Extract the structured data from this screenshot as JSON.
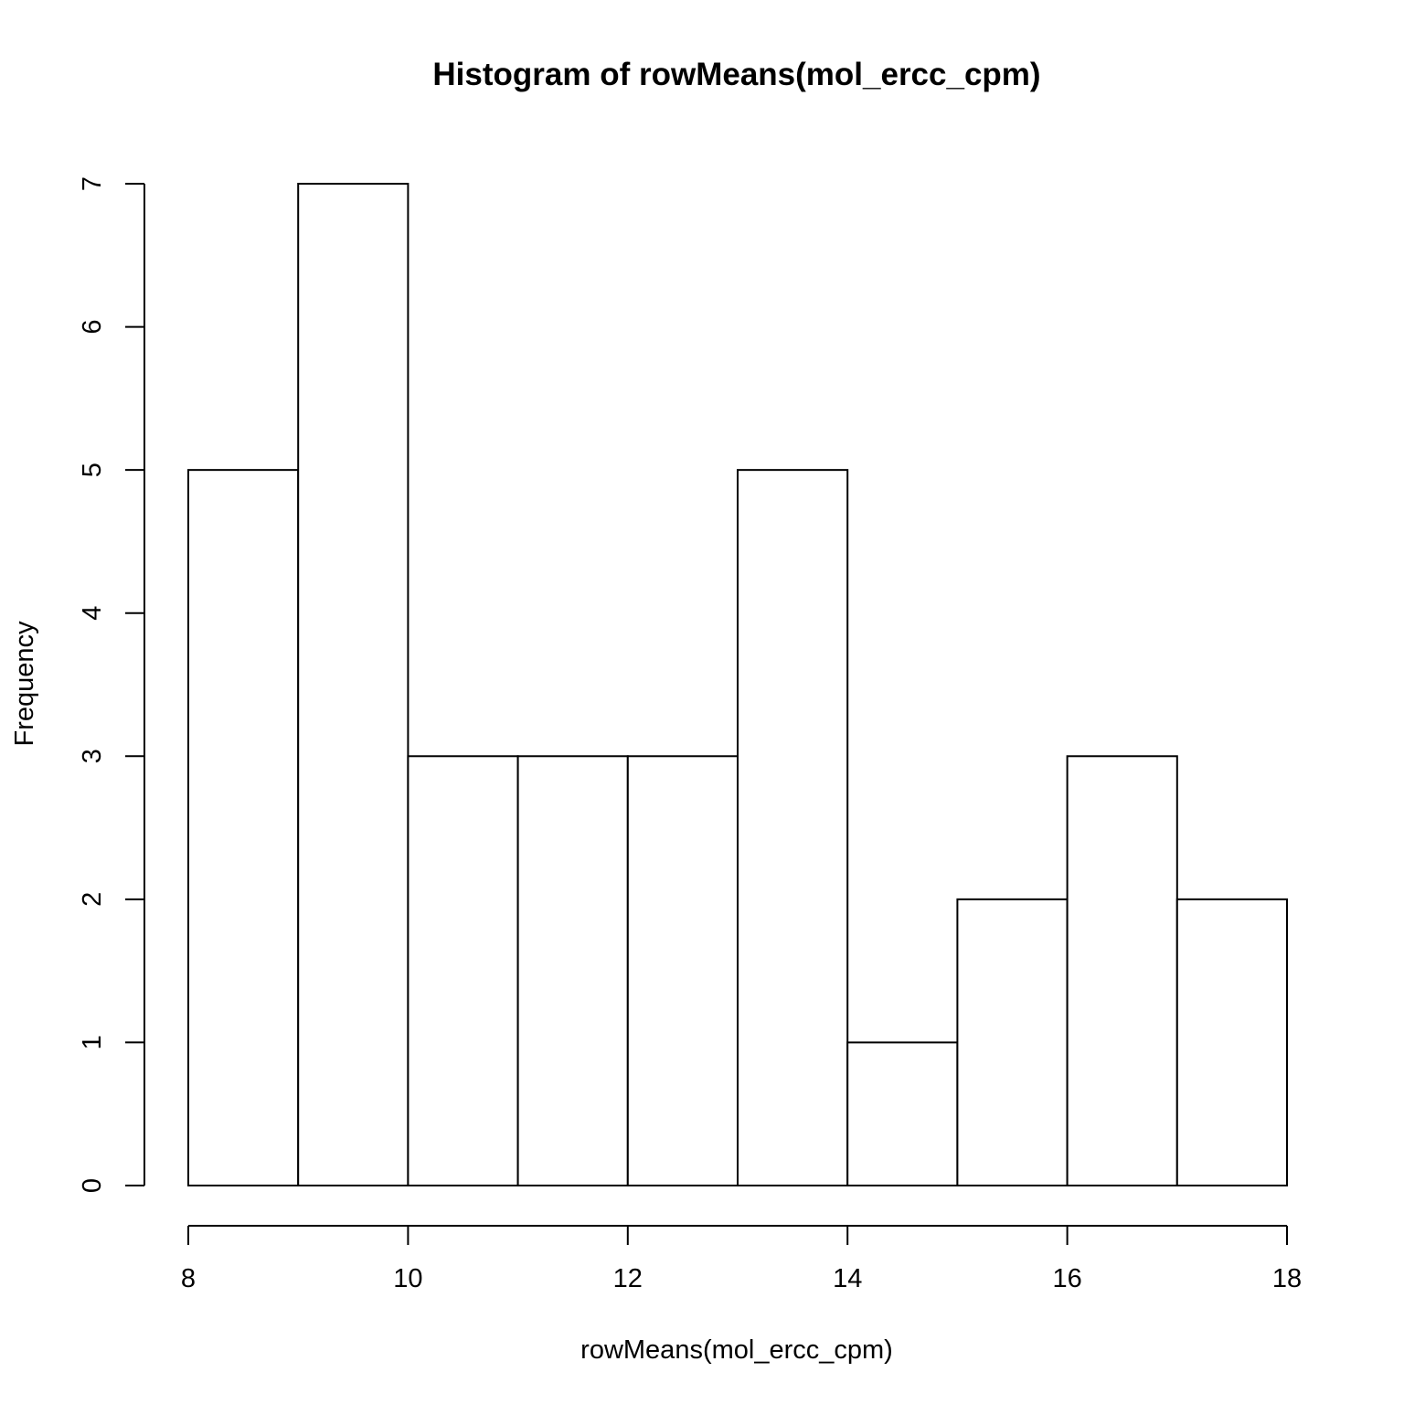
{
  "chart_data": {
    "type": "bar",
    "subtype": "histogram",
    "title": "Histogram of rowMeans(mol_ercc_cpm)",
    "xlabel": "rowMeans(mol_ercc_cpm)",
    "ylabel": "Frequency",
    "bin_edges": [
      8,
      9,
      10,
      11,
      12,
      13,
      14,
      15,
      16,
      17,
      18
    ],
    "values": [
      5,
      7,
      3,
      3,
      3,
      5,
      1,
      2,
      3,
      2
    ],
    "xlim": [
      8,
      18
    ],
    "ylim": [
      0,
      7
    ],
    "x_ticks": [
      8,
      10,
      12,
      14,
      16,
      18
    ],
    "y_ticks": [
      0,
      1,
      2,
      3,
      4,
      5,
      6,
      7
    ],
    "grid": false,
    "colors": {
      "bar_fill": "#ffffff",
      "bar_stroke": "#000000",
      "background": "#ffffff"
    }
  }
}
